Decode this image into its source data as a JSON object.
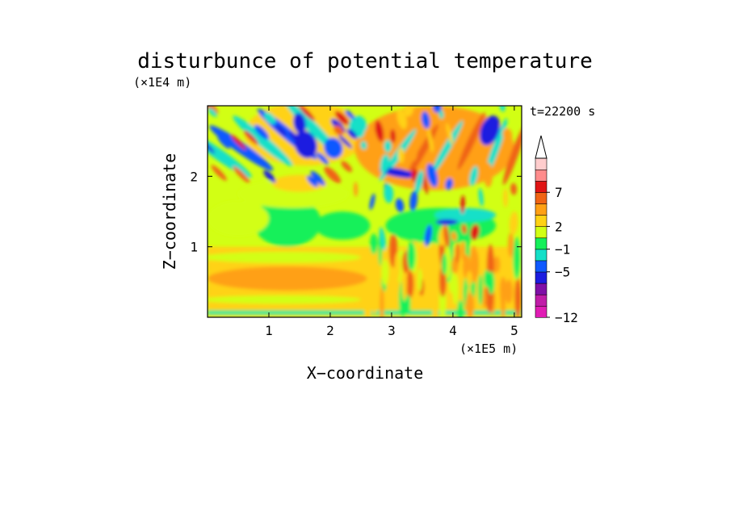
{
  "chart_data": {
    "type": "heatmap",
    "title": "disturbunce of potential temperature",
    "time_label": "t=22200 s",
    "xlabel": "X−coordinate",
    "ylabel": "Z−coordinate",
    "x_unit": "(×1E5 m)",
    "y_unit": "(×1E4 m)",
    "xlim": [
      0,
      5.12
    ],
    "ylim": [
      0,
      3.0
    ],
    "x_ticks": [
      {
        "value": 1,
        "label": "1"
      },
      {
        "value": 2,
        "label": "2"
      },
      {
        "value": 3,
        "label": "3"
      },
      {
        "value": 4,
        "label": "4"
      },
      {
        "value": 5,
        "label": "5"
      }
    ],
    "y_ticks": [
      {
        "value": 1,
        "label": "1"
      },
      {
        "value": 2,
        "label": "2"
      }
    ],
    "colorbar": {
      "extend_top": true,
      "colors": [
        "#e01cb4",
        "#c01ca8",
        "#7f0fa7",
        "#1c1ce0",
        "#0f59ff",
        "#14e0c8",
        "#14f05a",
        "#d2ff14",
        "#ffd214",
        "#ffa014",
        "#f06414",
        "#e01414",
        "#ff8c8c",
        "#ffcdcd"
      ],
      "tick_labels": [
        {
          "level_index": 0,
          "label": "−12"
        },
        {
          "level_index": 4,
          "label": "−5"
        },
        {
          "level_index": 6,
          "label": "−1"
        },
        {
          "level_index": 8,
          "label": "2"
        },
        {
          "level_index": 11,
          "label": "7"
        }
      ]
    },
    "field_description_levels": {
      "lower_layer_z_0_to_1": "mostly 1 to 3, warmer band near z=0.5 for x<2.6",
      "upper_layer": "alternating wave bands from -5 to 4",
      "surface_strip": "cool (-1 to 0) thin layer near z=0.1"
    }
  }
}
